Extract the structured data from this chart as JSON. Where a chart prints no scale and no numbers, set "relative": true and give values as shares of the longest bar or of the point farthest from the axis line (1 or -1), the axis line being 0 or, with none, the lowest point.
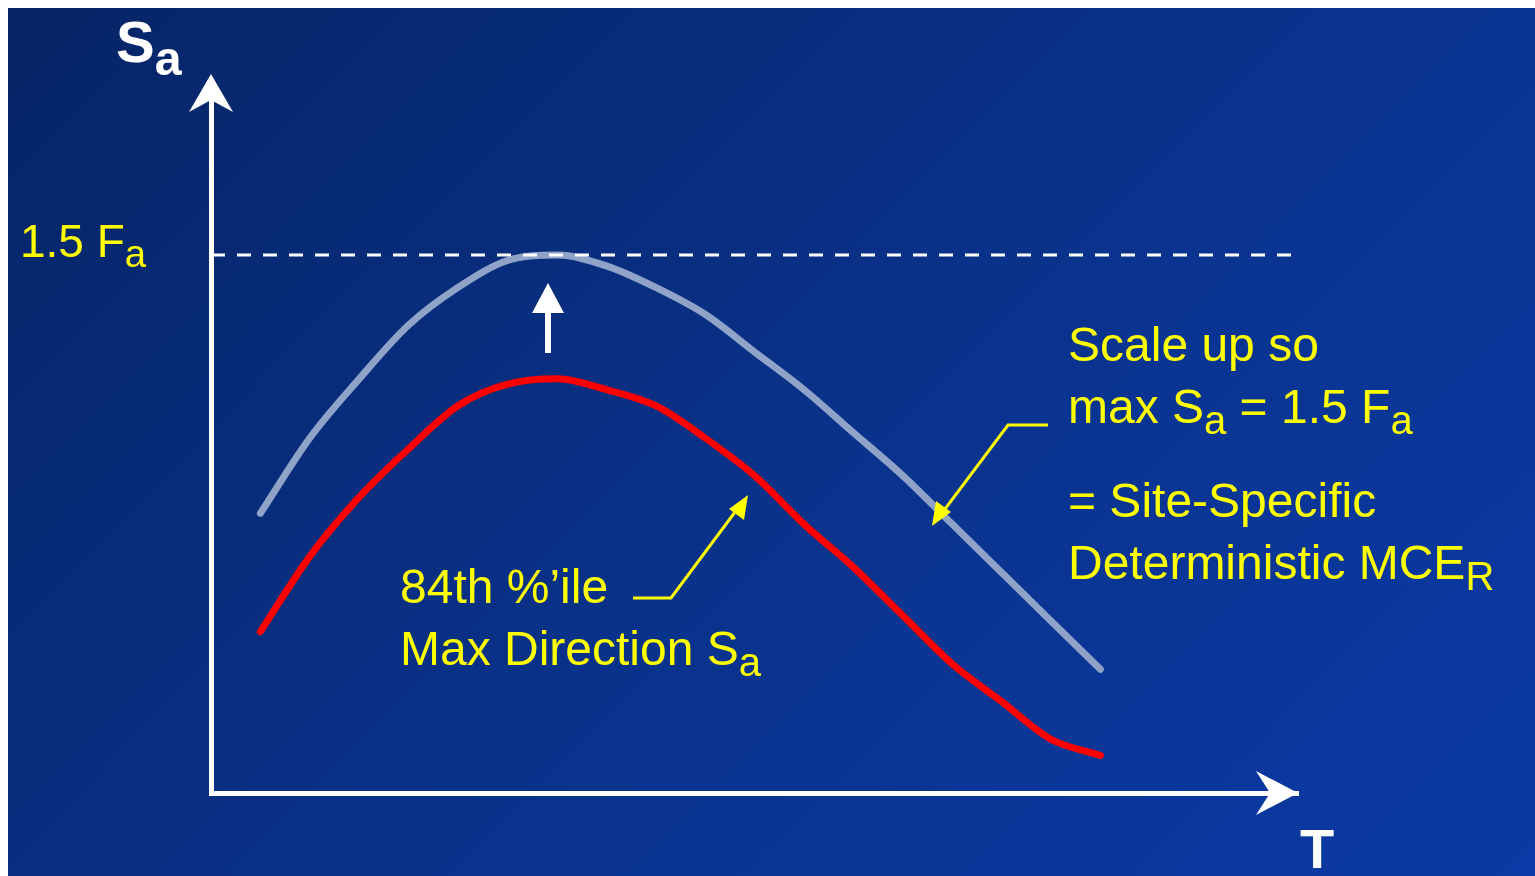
{
  "chart_data": {
    "type": "line",
    "relative": true,
    "xlabel": "T",
    "ylabel": "S$_{a}$",
    "categories": [
      null,
      null,
      null,
      null,
      null,
      null,
      null,
      null,
      null,
      null,
      null,
      null,
      null,
      null,
      null,
      null,
      null,
      null,
      null,
      null,
      null,
      null,
      null
    ],
    "series": [
      {
        "color": "#8fa3c9",
        "values": [
          null,
          0.52,
          0.66,
          0.77,
          0.87,
          0.94,
          0.99,
          1.0,
          0.98,
          0.94,
          0.89,
          0.82,
          0.75,
          0.67,
          0.59,
          0.5,
          0.41,
          0.32,
          0.23,
          null,
          null,
          null,
          null
        ]
      },
      {
        "color": "#ff0000",
        "values": [
          null,
          0.3,
          0.44,
          0.55,
          0.64,
          0.72,
          0.76,
          0.77,
          0.75,
          0.72,
          0.66,
          0.59,
          0.5,
          0.42,
          0.33,
          0.24,
          0.17,
          0.1,
          0.07,
          null,
          null,
          null,
          null
        ]
      }
    ],
    "ref_lines": [
      {
        "axis": "y",
        "value": 1.0,
        "label": "1.5 F$_{a}$",
        "color": "#ffffff",
        "line_style": "dashed"
      }
    ],
    "annotations": [
      "84th %’ile\nMax Direction S$_{a}$",
      "Scale up so\nmax S$_{a}$ = 1.5 F$_{a}$",
      "= Site-Specific\nDeterministic MCE$_{R}$"
    ],
    "legend": false,
    "grid": false,
    "marker": "none",
    "line_style": "solid"
  }
}
